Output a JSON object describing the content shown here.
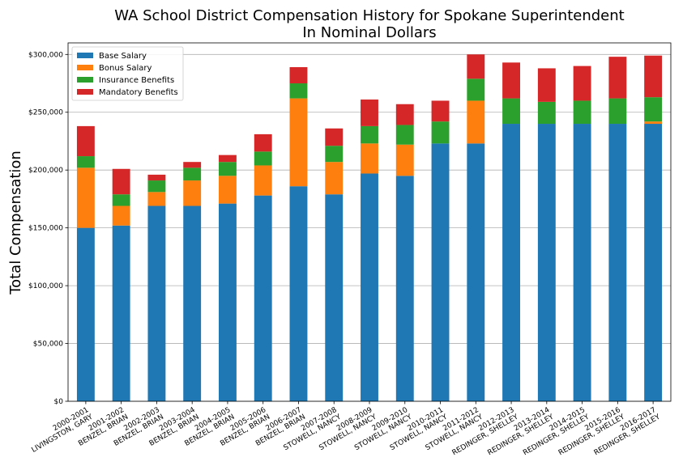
{
  "chart_data": {
    "type": "bar",
    "stacked": true,
    "title_line1": "WA School District Compensation History for Spokane Superintendent",
    "title_line2": "In Nominal Dollars",
    "ylabel": "Total Compensation",
    "xlabel": "",
    "ylim": [
      0,
      310000
    ],
    "yticks": [
      0,
      50000,
      100000,
      150000,
      200000,
      250000,
      300000
    ],
    "ytick_labels": [
      "$0",
      "$50,000",
      "$100,000",
      "$150,000",
      "$200,000",
      "$250,000",
      "$300,000"
    ],
    "grid": true,
    "legend_position": "top-left",
    "categories": [
      [
        "2000-2001",
        "LIVINGSTON, GARY"
      ],
      [
        "2001-2002",
        "BENZEL, BRIAN"
      ],
      [
        "2002-2003",
        "BENZEL, BRIAN"
      ],
      [
        "2003-2004",
        "BENZEL, BRIAN"
      ],
      [
        "2004-2005",
        "BENZEL, BRIAN"
      ],
      [
        "2005-2006",
        "BENZEL, BRIAN"
      ],
      [
        "2006-2007",
        "BENZEL, BRIAN"
      ],
      [
        "2007-2008",
        "STOWELL, NANCY"
      ],
      [
        "2008-2009",
        "STOWELL, NANCY"
      ],
      [
        "2009-2010",
        "STOWELL, NANCY"
      ],
      [
        "2010-2011",
        "STOWELL, NANCY"
      ],
      [
        "2011-2012",
        "STOWELL, NANCY"
      ],
      [
        "2012-2013",
        "REDINGER, SHELLEY"
      ],
      [
        "2013-2014",
        "REDINGER, SHELLEY"
      ],
      [
        "2014-2015",
        "REDINGER, SHELLEY"
      ],
      [
        "2015-2016",
        "REDINGER, SHELLEY"
      ],
      [
        "2016-2017",
        "REDINGER, SHELLEY"
      ]
    ],
    "series": [
      {
        "name": "Base Salary",
        "color": "#1f77b4",
        "values": [
          150000,
          152000,
          169000,
          169000,
          171000,
          178000,
          186000,
          179000,
          197000,
          195000,
          223000,
          223000,
          240000,
          240000,
          240000,
          240000,
          240000
        ]
      },
      {
        "name": "Bonus Salary",
        "color": "#ff7f0e",
        "values": [
          52000,
          17000,
          12000,
          22000,
          24000,
          26000,
          76000,
          28000,
          26000,
          27000,
          0,
          37000,
          0,
          0,
          0,
          0,
          2000
        ]
      },
      {
        "name": "Insurance Benefits",
        "color": "#2ca02c",
        "values": [
          10000,
          10000,
          10000,
          11000,
          12000,
          12000,
          13000,
          14000,
          15000,
          17000,
          19000,
          19000,
          22000,
          19000,
          20000,
          22000,
          21000
        ]
      },
      {
        "name": "Mandatory Benefits",
        "color": "#d62728",
        "values": [
          26000,
          22000,
          5000,
          5000,
          6000,
          15000,
          14000,
          15000,
          23000,
          18000,
          18000,
          21000,
          31000,
          29000,
          30000,
          36000,
          36000
        ]
      }
    ]
  }
}
